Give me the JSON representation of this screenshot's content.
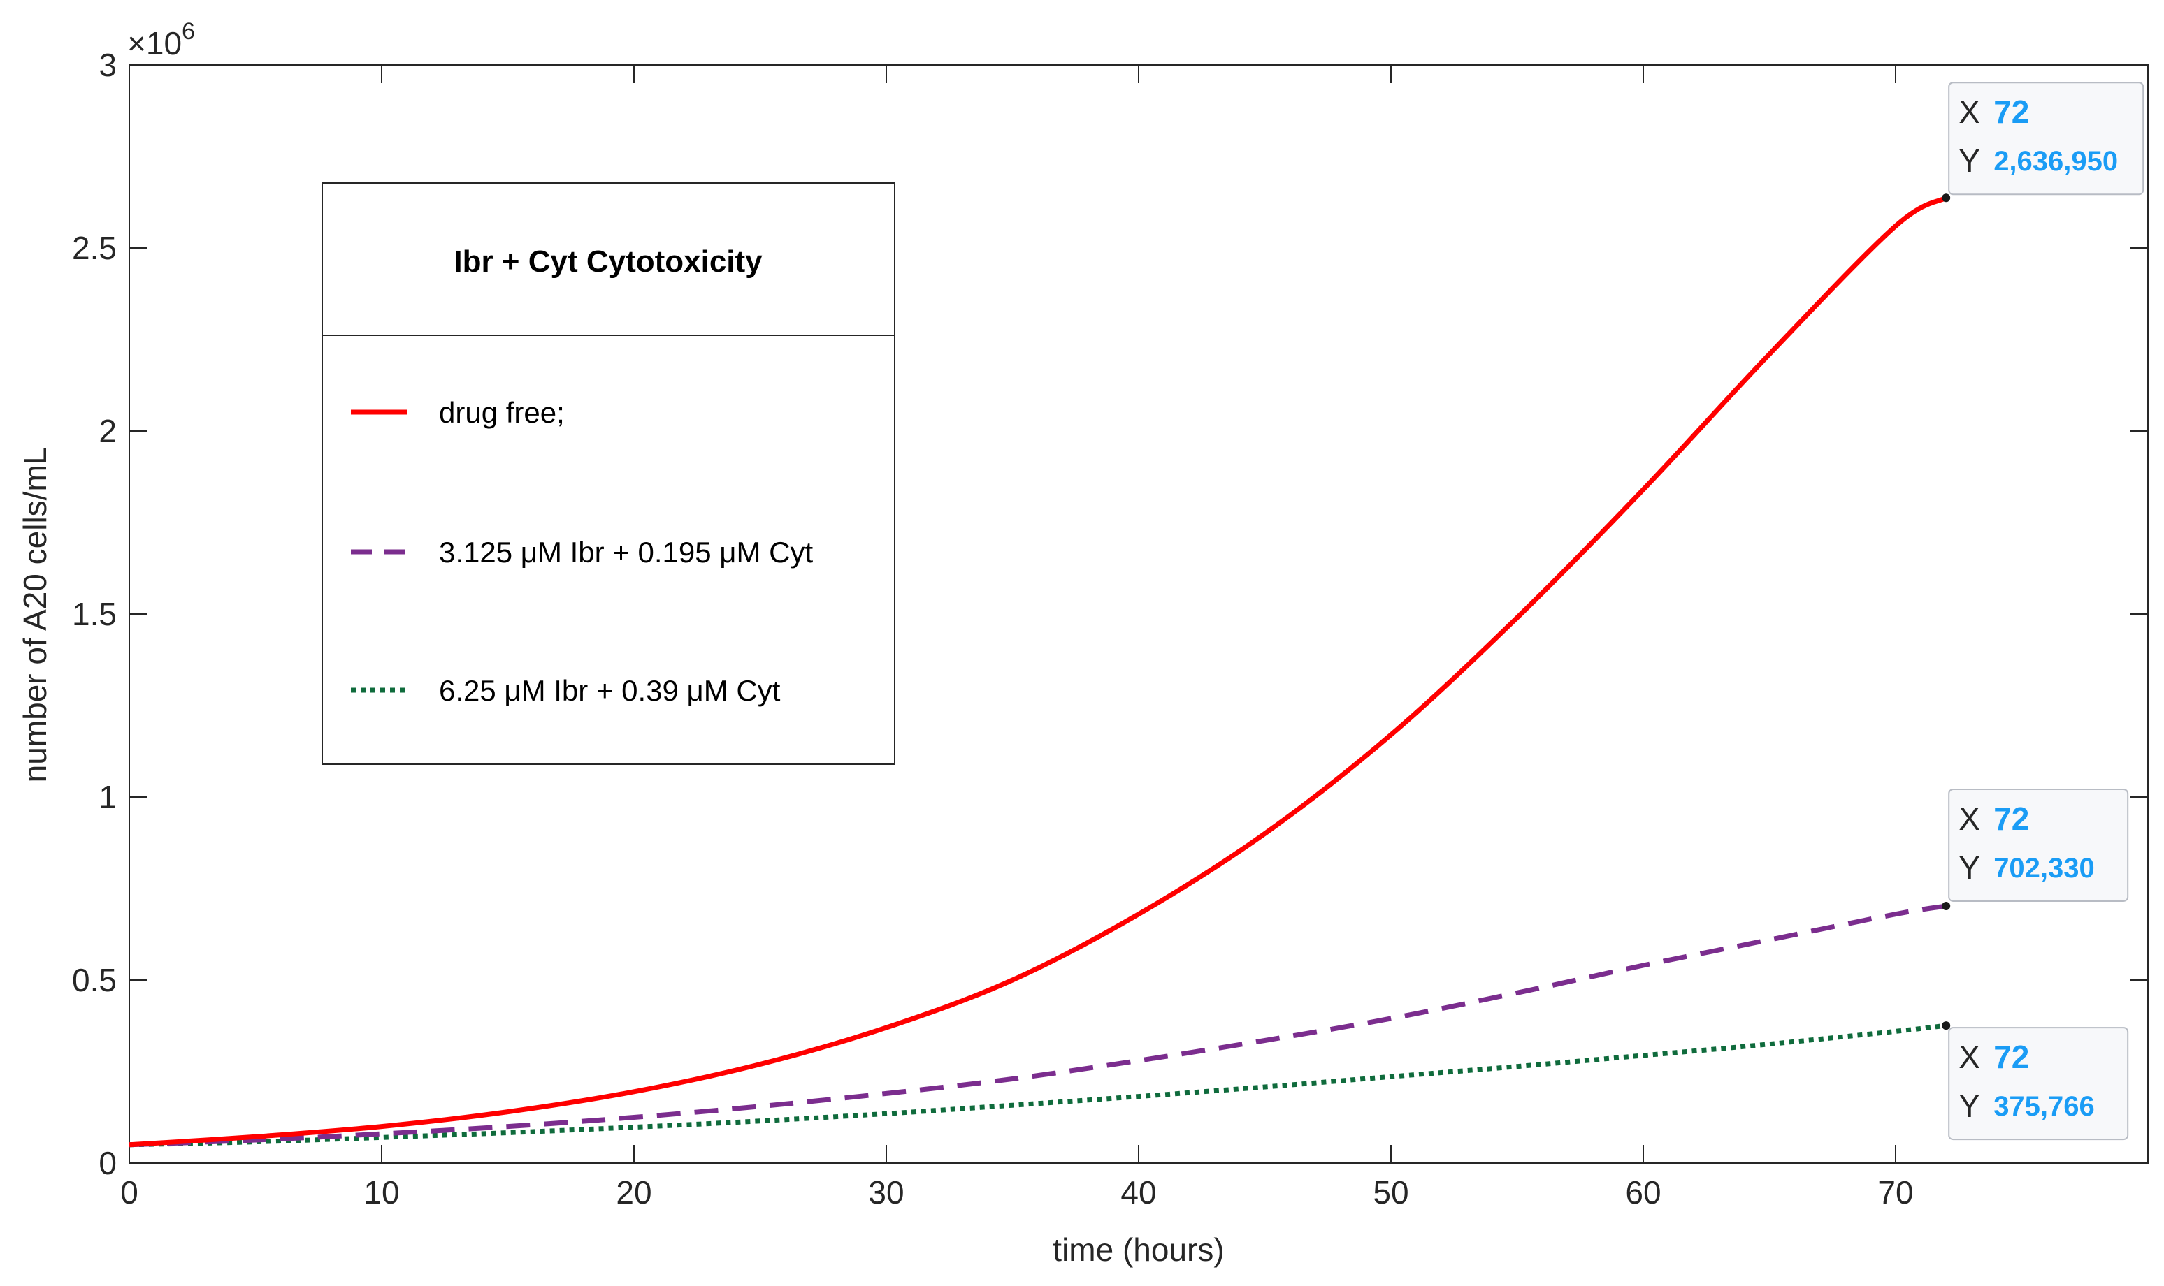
{
  "chart_data": {
    "type": "line",
    "title": "",
    "xlabel": "time (hours)",
    "ylabel": "number of A20 cells/mL",
    "xlim": [
      0,
      80
    ],
    "ylim": [
      0,
      3000000
    ],
    "exponent_label": {
      "base": "×10",
      "power": "6"
    },
    "xticks": [
      0,
      10,
      20,
      30,
      40,
      50,
      60,
      70
    ],
    "xtick_labels": [
      "0",
      "10",
      "20",
      "30",
      "40",
      "50",
      "60",
      "70"
    ],
    "yticks": [
      0,
      500000,
      1000000,
      1500000,
      2000000,
      2500000,
      3000000
    ],
    "ytick_labels": [
      "0",
      "0.5",
      "1",
      "1.5",
      "2",
      "2.5",
      "3"
    ],
    "grid": false,
    "legend": {
      "title": "Ibr + Cyt Cytotoxicity",
      "position": "upper-left"
    },
    "series": [
      {
        "name": "drug free;",
        "color": "#ff0000",
        "style": "solid",
        "x": [
          0,
          5,
          10,
          15,
          20,
          25,
          30,
          35,
          40,
          45,
          50,
          55,
          60,
          65,
          70,
          72
        ],
        "y": [
          50000,
          72000,
          100000,
          140000,
          195000,
          270000,
          370000,
          500000,
          680000,
          900000,
          1170000,
          1490000,
          1840000,
          2210000,
          2560000,
          2636950
        ]
      },
      {
        "name": "3.125 μM Ibr + 0.195 μM Cyt",
        "color": "#7b2d8e",
        "style": "dashed",
        "x": [
          0,
          5,
          10,
          15,
          20,
          25,
          30,
          35,
          40,
          45,
          50,
          55,
          60,
          65,
          70,
          72
        ],
        "y": [
          50000,
          63000,
          80000,
          100000,
          125000,
          155000,
          190000,
          230000,
          280000,
          335000,
          395000,
          465000,
          540000,
          610000,
          680000,
          702330
        ]
      },
      {
        "name": "6.25 μM Ibr + 0.39 μM Cyt",
        "color": "#0f6b3c",
        "style": "dotted",
        "x": [
          0,
          5,
          10,
          15,
          20,
          25,
          30,
          35,
          40,
          45,
          50,
          55,
          60,
          65,
          70,
          72
        ],
        "y": [
          50000,
          58000,
          70000,
          83000,
          98000,
          115000,
          135000,
          158000,
          182000,
          208000,
          236000,
          264000,
          294000,
          325000,
          360000,
          375766
        ]
      }
    ],
    "datatips": [
      {
        "series": 0,
        "x": 72,
        "y": 2636950,
        "x_label": "X",
        "y_label": "Y",
        "x_text": "72",
        "y_text": "2,636,950"
      },
      {
        "series": 1,
        "x": 72,
        "y": 702330,
        "x_label": "X",
        "y_label": "Y",
        "x_text": "72",
        "y_text": "702,330"
      },
      {
        "series": 2,
        "x": 72,
        "y": 375766,
        "x_label": "X",
        "y_label": "Y",
        "x_text": "72",
        "y_text": "375,766"
      }
    ]
  }
}
